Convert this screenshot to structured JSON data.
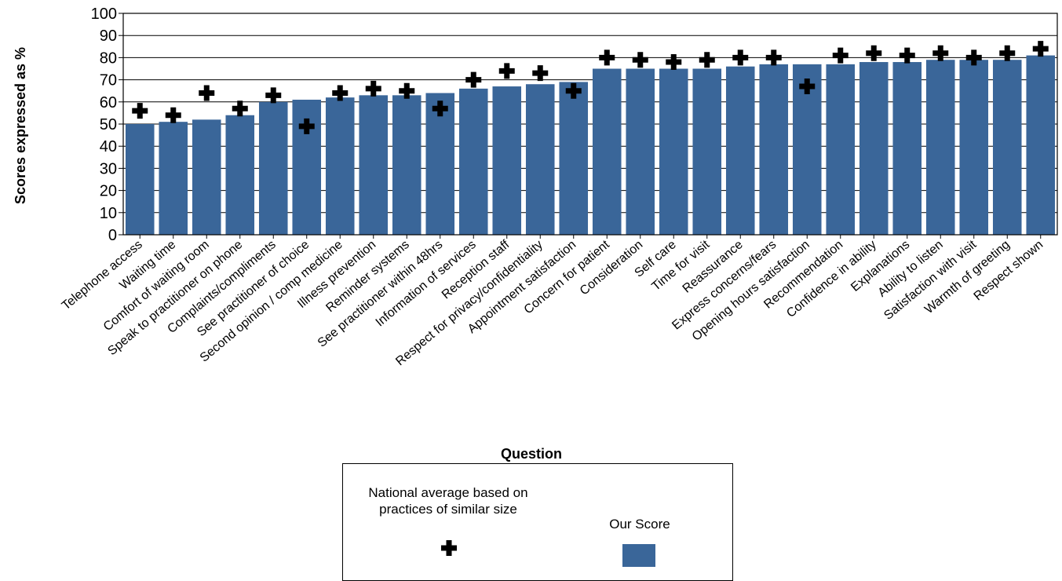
{
  "chart_data": {
    "type": "bar",
    "title": "",
    "xlabel": "Question",
    "ylabel": "Scores expressed as %",
    "ylim": [
      0,
      100
    ],
    "yticks": [
      0,
      10,
      20,
      30,
      40,
      50,
      60,
      70,
      80,
      90,
      100
    ],
    "grid": true,
    "legend_position": "bottom",
    "categories": [
      "Telephone access",
      "Waiting time",
      "Comfort of waiting room",
      "Speak to practitioner on phone",
      "Complaints/compliments",
      "See practitioner of choice",
      "Second opinion / comp medicine",
      "Illness prevention",
      "Reminder systems",
      "See practitioner within 48hrs",
      "Information of services",
      "Reception staff",
      "Respect for privacy/confidentiality",
      "Appointment satisfaction",
      "Concern for patient",
      "Consideration",
      "Self care",
      "Time for visit",
      "Reassurance",
      "Express concerns/fears",
      "Opening hours satisfaction",
      "Recommendation",
      "Confidence in ability",
      "Explanations",
      "Ability to listen",
      "Satisfaction with visit",
      "Warmth of greeting",
      "Respect shown"
    ],
    "series": [
      {
        "name": "Our Score",
        "mark": "bar",
        "color": "#3a6699",
        "values": [
          50,
          51,
          52,
          54,
          60,
          61,
          62,
          63,
          63,
          64,
          66,
          67,
          68,
          69,
          75,
          75,
          75,
          75,
          76,
          77,
          77,
          77,
          78,
          78,
          79,
          79,
          79,
          81
        ]
      },
      {
        "name": "National average based on practices of similar size",
        "mark": "cross",
        "color": "#000000",
        "values": [
          56,
          54,
          64,
          57,
          63,
          49,
          64,
          66,
          65,
          57,
          70,
          74,
          73,
          65,
          80,
          79,
          78,
          79,
          80,
          80,
          67,
          81,
          82,
          81,
          82,
          80,
          82,
          84
        ]
      }
    ]
  },
  "legend": {
    "national_label": "National average based on practices of similar size",
    "score_label": "Our Score",
    "national_icon": "plus-cross-icon",
    "score_color": "#3a6699"
  }
}
